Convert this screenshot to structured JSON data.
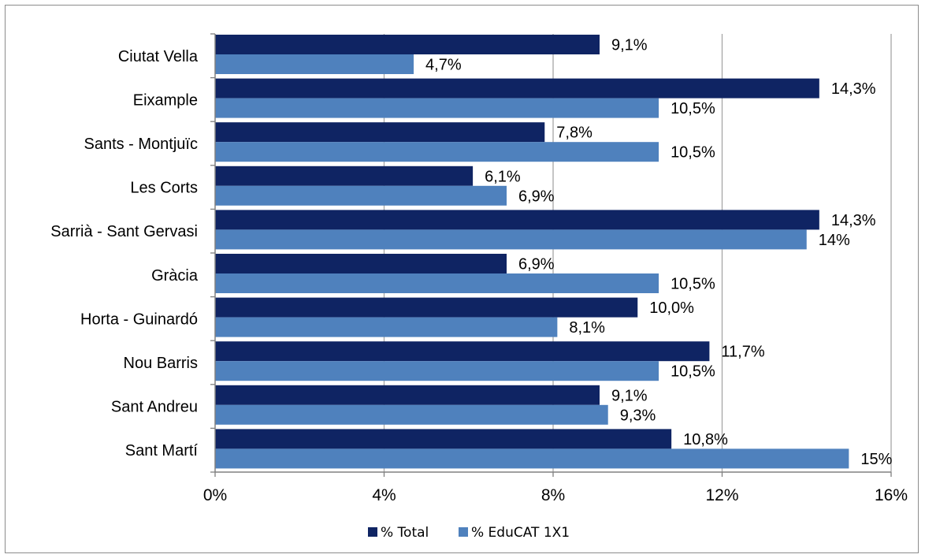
{
  "chart_data": {
    "type": "bar",
    "orientation": "horizontal",
    "categories": [
      "Ciutat Vella",
      "Eixample",
      "Sants - Montjuïc",
      "Les Corts",
      "Sarrià - Sant Gervasi",
      "Gràcia",
      "Horta - Guinardó",
      "Nou Barris",
      "Sant Andreu",
      "Sant Martí"
    ],
    "series": [
      {
        "name": "% Total",
        "color": "#0f2463",
        "values": [
          9.1,
          14.3,
          7.8,
          6.1,
          14.3,
          6.9,
          10.0,
          11.7,
          9.1,
          10.8
        ],
        "labels": [
          "9,1%",
          "14,3%",
          "7,8%",
          "6,1%",
          "14,3%",
          "6,9%",
          "10,0%",
          "11,7%",
          "9,1%",
          "10,8%"
        ]
      },
      {
        "name": "% EduCAT 1X1",
        "color": "#4f81bd",
        "values": [
          4.7,
          10.5,
          10.5,
          6.9,
          14,
          10.5,
          8.1,
          10.5,
          9.3,
          15
        ],
        "labels": [
          "4,7%",
          "10,5%",
          "10,5%",
          "6,9%",
          "14%",
          "10,5%",
          "8,1%",
          "10,5%",
          "9,3%",
          "15%"
        ]
      }
    ],
    "xlim": [
      0,
      16
    ],
    "xticks": [
      0,
      4,
      8,
      12,
      16
    ],
    "xtick_labels": [
      "0%",
      "4%",
      "8%",
      "12%",
      "16%"
    ],
    "grid": "vertical",
    "legend_position": "bottom",
    "title": "",
    "xlabel": "",
    "ylabel": ""
  }
}
